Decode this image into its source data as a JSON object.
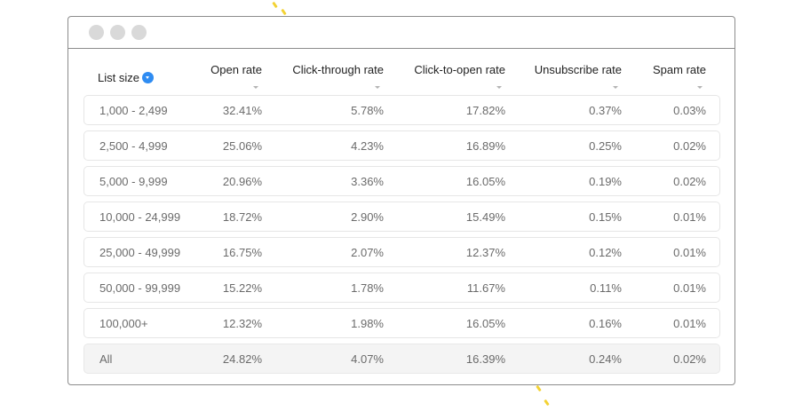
{
  "table": {
    "columns": [
      {
        "label": "List size"
      },
      {
        "label": "Open rate"
      },
      {
        "label": "Click-through rate"
      },
      {
        "label": "Click-to-open rate"
      },
      {
        "label": "Unsubscribe rate"
      },
      {
        "label": "Spam rate"
      }
    ],
    "rows": [
      {
        "size": "1,000 - 2,499",
        "open": "32.41%",
        "ctr": "5.78%",
        "ctor": "17.82%",
        "unsub": "0.37%",
        "spam": "0.03%"
      },
      {
        "size": "2,500 - 4,999",
        "open": "25.06%",
        "ctr": "4.23%",
        "ctor": "16.89%",
        "unsub": "0.25%",
        "spam": "0.02%"
      },
      {
        "size": "5,000 - 9,999",
        "open": "20.96%",
        "ctr": "3.36%",
        "ctor": "16.05%",
        "unsub": "0.19%",
        "spam": "0.02%"
      },
      {
        "size": "10,000 - 24,999",
        "open": "18.72%",
        "ctr": "2.90%",
        "ctor": "15.49%",
        "unsub": "0.15%",
        "spam": "0.01%"
      },
      {
        "size": "25,000 - 49,999",
        "open": "16.75%",
        "ctr": "2.07%",
        "ctor": "12.37%",
        "unsub": "0.12%",
        "spam": "0.01%"
      },
      {
        "size": "50,000 - 99,999",
        "open": "15.22%",
        "ctr": "1.78%",
        "ctor": "11.67%",
        "unsub": "0.11%",
        "spam": "0.01%"
      },
      {
        "size": "100,000+",
        "open": "12.32%",
        "ctr": "1.98%",
        "ctor": "16.05%",
        "unsub": "0.16%",
        "spam": "0.01%"
      }
    ],
    "total": {
      "size": "All",
      "open": "24.82%",
      "ctr": "4.07%",
      "ctor": "16.39%",
      "unsub": "0.24%",
      "spam": "0.02%"
    }
  },
  "colors": {
    "accent": "#2f8cf2",
    "window_border": "#8c8c8c",
    "traffic_dot": "#d9d9d9",
    "decoration": "#f3d233"
  }
}
